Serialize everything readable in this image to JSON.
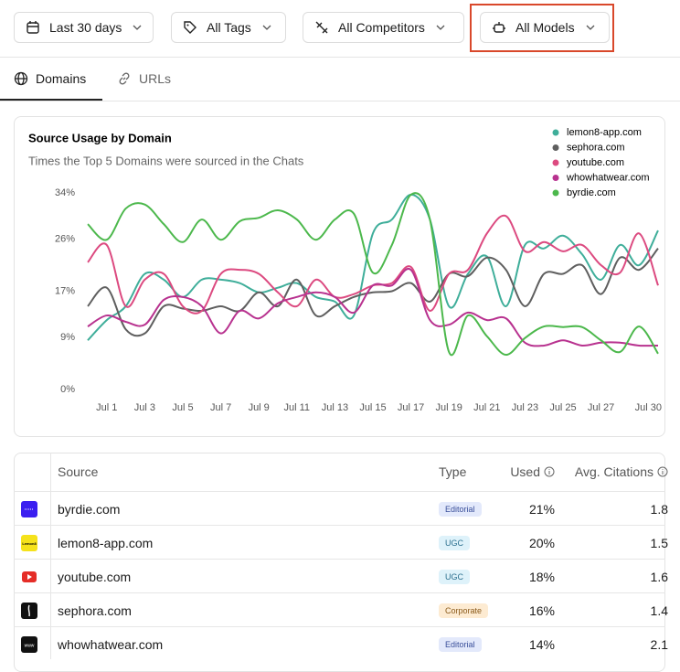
{
  "filters": [
    "Last 30 days",
    "All Tags",
    "All Competitors",
    "All Models"
  ],
  "tabs": [
    "Domains",
    "URLs"
  ],
  "chart_data": {
    "type": "line",
    "title": "Source Usage by Domain",
    "subtitle": "Times the Top 5 Domains were sourced in the Chats",
    "categories": [
      null,
      "Jul 1",
      null,
      "Jul 3",
      null,
      "Jul 5",
      null,
      "Jul 7",
      null,
      "Jul 9",
      null,
      "Jul 11",
      null,
      "Jul 13",
      null,
      "Jul 15",
      null,
      "Jul 17",
      null,
      "Jul 19",
      null,
      "Jul 21",
      null,
      "Jul 23",
      null,
      "Jul 25",
      null,
      "Jul 27",
      null,
      null,
      "Jul 30"
    ],
    "ylim": [
      0,
      34
    ],
    "yticks": [
      {
        "value": 0,
        "label": "0%"
      },
      {
        "value": 9,
        "label": "9%"
      },
      {
        "value": 17,
        "label": "17%"
      },
      {
        "value": 26,
        "label": "26%"
      },
      {
        "value": 34,
        "label": "34%"
      }
    ],
    "grid": false,
    "legend": "top-right",
    "series": [
      {
        "name": "lemon8-app.com",
        "color": "#3fae9a",
        "values": [
          8.5,
          12,
          14.4,
          20,
          19,
          16,
          19,
          19,
          18.4,
          16.8,
          17.6,
          18.4,
          16,
          15.2,
          12.8,
          27,
          29.4,
          33.7,
          29.4,
          14.4,
          20,
          23,
          14.4,
          25,
          24.4,
          26.6,
          23.4,
          19,
          25,
          21.5,
          27.5
        ]
      },
      {
        "name": "sephora.com",
        "color": "#5f5f5f",
        "values": [
          14.4,
          17.6,
          10.4,
          9.7,
          14.4,
          14,
          13.6,
          14.4,
          13.6,
          16.8,
          14.4,
          19,
          12.8,
          14.4,
          16,
          16.8,
          17,
          18.4,
          15.2,
          20,
          19.6,
          22.8,
          20.7,
          14.4,
          20,
          20,
          21.5,
          16.5,
          22.8,
          20.7,
          24.4
        ]
      },
      {
        "name": "youtube.com",
        "color": "#dc4a80",
        "values": [
          22,
          25,
          14.4,
          19,
          20,
          14.4,
          13.6,
          20,
          20.7,
          20,
          16.8,
          14.4,
          19,
          16,
          16.5,
          18,
          18.4,
          21.2,
          13.6,
          20,
          20.7,
          27,
          30,
          23.9,
          25.5,
          23.9,
          25,
          21.5,
          20.2,
          27,
          18
        ]
      },
      {
        "name": "whowhatwear.com",
        "color": "#b8328f",
        "values": [
          10.9,
          12.8,
          11.7,
          11.2,
          15.5,
          16,
          14.4,
          9.7,
          13.6,
          12.3,
          14.9,
          16,
          16.8,
          16,
          13.3,
          18,
          18,
          20.7,
          12,
          11.2,
          13.3,
          12,
          12.3,
          8.1,
          7.6,
          8.5,
          7.6,
          8.1,
          8.1,
          7.6,
          7.6
        ]
      },
      {
        "name": "byrdie.com",
        "color": "#4cb84c",
        "values": [
          28.6,
          25.9,
          31.3,
          32,
          28.6,
          25.5,
          29.4,
          25.9,
          29.1,
          29.7,
          31,
          29.4,
          25.9,
          29.4,
          30.4,
          20.2,
          25,
          33.7,
          29.4,
          6.5,
          12.8,
          9.2,
          6,
          8.9,
          10.9,
          10.8,
          10.8,
          8.5,
          6.5,
          10.9,
          6.2
        ]
      }
    ]
  },
  "table": {
    "headers": [
      "Source",
      "Type",
      "Used",
      "Avg. Citations"
    ],
    "rows": [
      [
        "byrdie.com",
        "Editorial",
        "21%",
        "1.8"
      ],
      [
        "lemon8-app.com",
        "UGC",
        "20%",
        "1.5"
      ],
      [
        "youtube.com",
        "UGC",
        "18%",
        "1.6"
      ],
      [
        "sephora.com",
        "Corporate",
        "16%",
        "1.4"
      ],
      [
        "whowhatwear.com",
        "Editorial",
        "14%",
        "2.1"
      ]
    ]
  }
}
